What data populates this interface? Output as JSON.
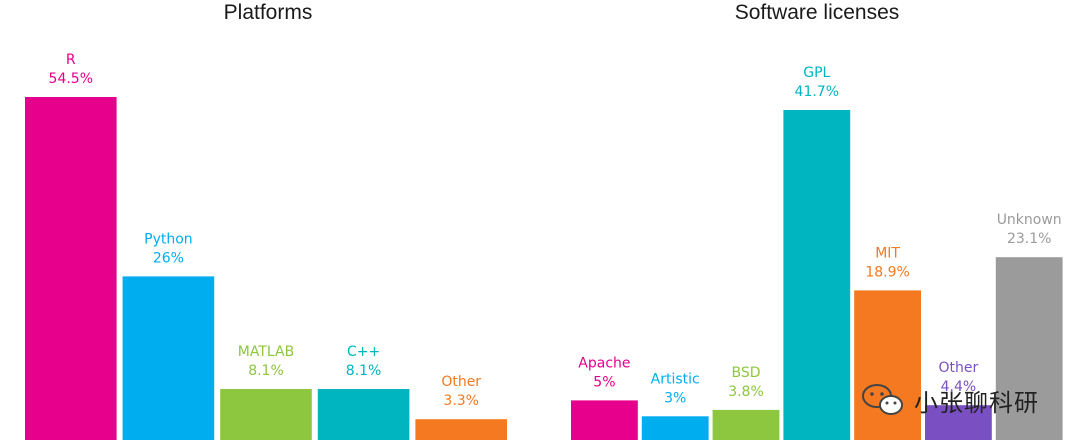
{
  "chart_data": [
    {
      "type": "bar",
      "title": "Platforms",
      "categories": [
        "R",
        "Python",
        "MATLAB",
        "C++",
        "Other"
      ],
      "values": [
        54.5,
        26,
        8.1,
        8.1,
        3.3
      ],
      "value_labels": [
        "54.5%",
        "26%",
        "8.1%",
        "8.1%",
        "3.3%"
      ],
      "colors": [
        "#e6008c",
        "#00aeef",
        "#8dc63f",
        "#00b4c0",
        "#f47920"
      ],
      "unit": "%",
      "grid": false,
      "legend": "none"
    },
    {
      "type": "bar",
      "title": "Software licenses",
      "categories": [
        "Apache",
        "Artistic",
        "BSD",
        "GPL",
        "MIT",
        "Other",
        "Unknown"
      ],
      "values": [
        5,
        3,
        3.8,
        41.7,
        18.9,
        4.4,
        23.1
      ],
      "value_labels": [
        "5%",
        "3%",
        "3.8%",
        "41.7%",
        "18.9%",
        "4.4%",
        "23.1%"
      ],
      "colors": [
        "#e6008c",
        "#00aeef",
        "#8dc63f",
        "#00b4c0",
        "#f47920",
        "#7a4fc2",
        "#9b9b9b"
      ],
      "unit": "%",
      "grid": false,
      "legend": "none"
    }
  ],
  "watermark": {
    "text": "小张聊科研",
    "icon": "wechat-icon"
  }
}
